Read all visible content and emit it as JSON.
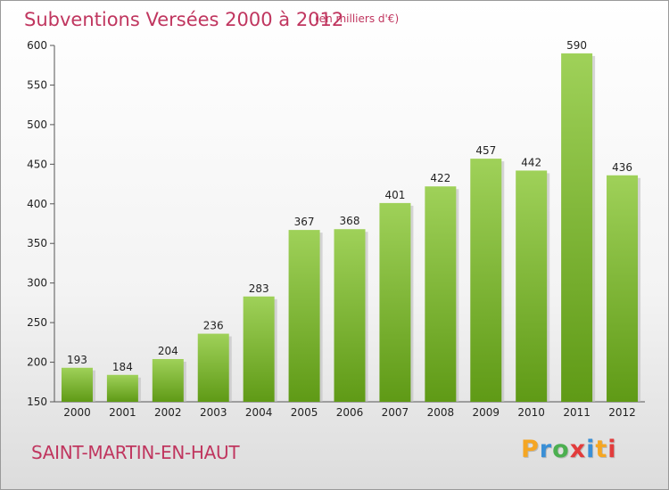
{
  "title": "Subventions Versées 2000 à 2012",
  "subtitle": "(en milliers d'€)",
  "commune": "SAINT-MARTIN-EN-HAUT",
  "logo": {
    "text": "Proxiti",
    "letter_colors": [
      "#f5a623",
      "#3a8fd6",
      "#4caf50",
      "#e23c3c",
      "#3a8fd6",
      "#f5a623",
      "#e23c3c"
    ]
  },
  "colors": {
    "accent": "#c0365f",
    "bar_top": "#9fd159",
    "bar_bottom": "#5f9a16"
  },
  "chart_data": {
    "type": "bar",
    "title": "Subventions Versées 2000 à 2012",
    "subtitle": "(en milliers d'€)",
    "categories": [
      "2000",
      "2001",
      "2002",
      "2003",
      "2004",
      "2005",
      "2006",
      "2007",
      "2008",
      "2009",
      "2010",
      "2011",
      "2012"
    ],
    "values": [
      193,
      184,
      204,
      236,
      283,
      367,
      368,
      401,
      422,
      457,
      442,
      590,
      436
    ],
    "ylim": [
      150,
      600
    ],
    "yticks": [
      150,
      200,
      250,
      300,
      350,
      400,
      450,
      500,
      550,
      600
    ],
    "grid": false,
    "legend": "none"
  }
}
